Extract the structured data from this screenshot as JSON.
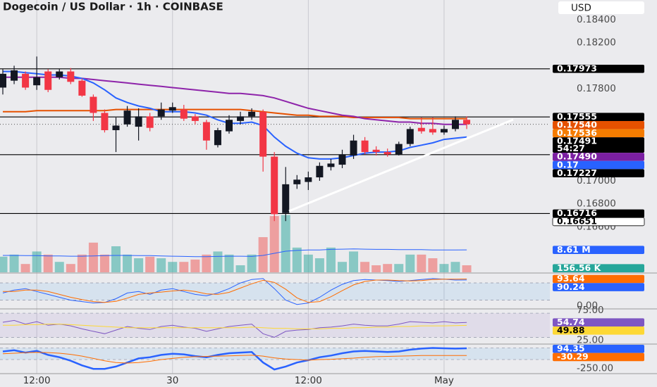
{
  "chart_data": {
    "type": "candlestick",
    "title": "Dogecoin / US Dollar · 1h · COINBASE",
    "currency": "USD",
    "categories": [
      null,
      null,
      null,
      "12:00",
      null,
      null,
      null,
      null,
      null,
      null,
      null,
      null,
      null,
      null,
      null,
      "30",
      null,
      null,
      null,
      null,
      null,
      null,
      null,
      null,
      null,
      null,
      null,
      "12:00",
      null,
      null,
      null,
      null,
      null,
      null,
      null,
      null,
      null,
      null,
      null,
      "May",
      null,
      null
    ],
    "open": [
      0.1781,
      0.1787,
      0.1793,
      0.1783,
      0.1795,
      0.179,
      0.1795,
      0.1787,
      0.1773,
      0.1759,
      0.1744,
      0.1749,
      0.1747,
      0.1756,
      0.1756,
      0.1761,
      0.1762,
      0.1756,
      0.1751,
      0.1731,
      0.1743,
      0.1752,
      0.1756,
      0.176,
      0.1721,
      0.1672,
      0.1697,
      0.1699,
      0.1703,
      0.1712,
      0.1714,
      0.1722,
      0.1735,
      0.1727,
      0.1725,
      0.1723,
      0.1732,
      0.1746,
      0.1745,
      0.1742,
      0.1745,
      0.1753
    ],
    "high": [
      0.1797,
      0.18,
      0.1795,
      0.1808,
      0.1797,
      0.1797,
      0.1798,
      0.1789,
      0.1775,
      0.1762,
      0.1755,
      0.1765,
      0.1763,
      0.1759,
      0.1768,
      0.1768,
      0.1766,
      0.1758,
      0.1753,
      0.1746,
      0.1757,
      0.176,
      0.1763,
      0.1762,
      0.1725,
      0.1712,
      0.1705,
      0.1708,
      0.1716,
      0.1719,
      0.1727,
      0.174,
      0.1738,
      0.173,
      0.1728,
      0.1734,
      0.1747,
      0.1755,
      0.1755,
      0.1748,
      0.1756,
      0.1756
    ],
    "low": [
      0.1775,
      0.1784,
      0.1779,
      0.1779,
      0.1777,
      0.1788,
      0.1784,
      0.1773,
      0.1752,
      0.1742,
      0.1725,
      0.1747,
      0.1735,
      0.1743,
      0.1753,
      0.1759,
      0.1752,
      0.1749,
      0.1727,
      0.1729,
      0.1741,
      0.1749,
      0.1753,
      0.1708,
      0.1665,
      0.1665,
      0.1693,
      0.1692,
      0.17,
      0.1709,
      0.1711,
      0.1719,
      0.1723,
      0.1722,
      0.1721,
      0.1722,
      0.173,
      0.1741,
      0.174,
      0.174,
      0.1743,
      0.1745
    ],
    "close": [
      0.1793,
      0.1796,
      0.1781,
      0.179,
      0.1779,
      0.1795,
      0.1786,
      0.1774,
      0.1759,
      0.1744,
      0.1748,
      0.1761,
      0.1756,
      0.1746,
      0.1762,
      0.1764,
      0.1754,
      0.1752,
      0.1735,
      0.1744,
      0.1753,
      0.1756,
      0.176,
      0.1721,
      0.1671,
      0.1697,
      0.1701,
      0.1703,
      0.1713,
      0.1715,
      0.1723,
      0.1735,
      0.1725,
      0.1725,
      0.1723,
      0.1732,
      0.1745,
      0.1743,
      0.1742,
      0.1745,
      0.1753,
      0.17491
    ],
    "up_color": "#131722",
    "down_color": "#f23645",
    "ylim": [
      0.16205,
      0.18571
    ],
    "yticks": [
      {
        "value": 0.166,
        "label": "0.16600"
      },
      {
        "value": 0.168,
        "label": "0.16800"
      },
      {
        "value": 0.17,
        "label": "0.17000"
      },
      {
        "value": 0.178,
        "label": "0.17800"
      },
      {
        "value": 0.182,
        "label": "0.18200"
      },
      {
        "value": 0.184,
        "label": "0.18400"
      }
    ],
    "xgrid": true,
    "moving_averages": [
      {
        "color": "#e65100",
        "values": [
          0.176,
          0.176,
          0.176,
          0.1761,
          0.1761,
          0.1761,
          0.1761,
          0.1761,
          0.1761,
          0.1761,
          0.1762,
          0.1762,
          0.1762,
          0.1762,
          0.1762,
          0.1762,
          0.1762,
          0.1762,
          0.1762,
          0.1762,
          0.1762,
          0.1762,
          0.1761,
          0.176,
          0.1759,
          0.1758,
          0.1757,
          0.1757,
          0.1756,
          0.1756,
          0.1756,
          0.1755,
          0.1755,
          0.1755,
          0.1755,
          0.1755,
          0.1754,
          0.1754,
          0.1754,
          0.1754,
          0.1754,
          0.1754
        ]
      },
      {
        "color": "#8e24aa",
        "values": [
          0.179,
          0.179,
          0.179,
          0.179,
          0.179,
          0.179,
          0.1789,
          0.1789,
          0.1788,
          0.1787,
          0.1786,
          0.1785,
          0.1784,
          0.1783,
          0.1782,
          0.1781,
          0.178,
          0.1779,
          0.1778,
          0.1777,
          0.1776,
          0.1776,
          0.1775,
          0.1774,
          0.1772,
          0.1769,
          0.1766,
          0.1763,
          0.1761,
          0.1759,
          0.1757,
          0.1756,
          0.1754,
          0.1753,
          0.1752,
          0.1751,
          0.1751,
          0.175,
          0.175,
          0.1749,
          0.1749,
          0.1749
        ]
      },
      {
        "color": "#2962ff",
        "values": [
          0.1795,
          0.1795,
          0.1794,
          0.1793,
          0.1792,
          0.1792,
          0.1791,
          0.1789,
          0.1785,
          0.1779,
          0.1772,
          0.1768,
          0.1765,
          0.1763,
          0.176,
          0.176,
          0.176,
          0.1759,
          0.1757,
          0.1753,
          0.175,
          0.175,
          0.1751,
          0.1748,
          0.1738,
          0.173,
          0.1724,
          0.172,
          0.1719,
          0.1719,
          0.172,
          0.1722,
          0.1724,
          0.1725,
          0.1725,
          0.1726,
          0.1729,
          0.1731,
          0.1733,
          0.1736,
          0.1737,
          0.1738
        ]
      }
    ],
    "levels": [
      0.17973,
      0.17555,
      0.17227,
      0.16716
    ],
    "price_tags": [
      {
        "value": 0.17973,
        "label": "0.17973",
        "color": "#000000",
        "text_color": "#ffffff"
      },
      {
        "value": 0.17555,
        "label": "0.17555",
        "color": "#000000",
        "text_color": "#ffffff"
      },
      {
        "value": 0.1754,
        "label": "0.17540",
        "color": "#e65100",
        "text_color": "#ffffff"
      },
      {
        "value": 0.17536,
        "label": "0.17536",
        "color": "#f57c00",
        "text_color": "#ffffff"
      },
      {
        "value": 0.17491,
        "label": "0.17491",
        "color": "#000000",
        "text_color": "#ffffff",
        "countdown": "54:27"
      },
      {
        "value": 0.1749,
        "label": "0.17490",
        "color": "#7b1fa2",
        "text_color": "#ffffff"
      },
      {
        "value": 0.1738,
        "label": "0.17",
        "color": "#2962ff",
        "text_color": "#ffffff"
      },
      {
        "value": 0.17227,
        "label": "0.17227",
        "color": "#000000",
        "text_color": "#ffffff"
      },
      {
        "value": 0.16716,
        "label": "0.16716",
        "color": "#000000",
        "text_color": "#ffffff"
      },
      {
        "value": 0.16651,
        "label": "0.16651",
        "color": "#ffffff",
        "text_color": "#000000"
      }
    ],
    "volume": {
      "values": [
        6,
        6.8,
        3.2,
        8,
        6.8,
        4,
        3.2,
        6.8,
        11.4,
        6.8,
        10,
        6.8,
        5.4,
        6,
        5.4,
        4,
        4,
        4.9,
        6.8,
        8,
        6.8,
        2.7,
        6.8,
        13.5,
        21.6,
        22,
        9.5,
        6.8,
        5.4,
        9.5,
        4,
        8,
        4,
        2.7,
        3.2,
        3.2,
        6.8,
        6.8,
        5.4,
        3.2,
        4,
        2.7
      ],
      "up_color": "#26a69a",
      "down_color": "#ef5350",
      "ylim": [
        0,
        104.6
      ],
      "ma": {
        "color": "#2962ff",
        "values": [
          6.5,
          6.5,
          6.4,
          6.4,
          6.3,
          6.3,
          6.2,
          6.2,
          6.3,
          6.4,
          6.5,
          6.5,
          6.4,
          6.4,
          6.3,
          6.2,
          6.1,
          6.0,
          6.0,
          6.1,
          6.2,
          6.2,
          6.1,
          6.5,
          7.3,
          8.1,
          8.4,
          8.6,
          8.6,
          8.8,
          8.9,
          9.0,
          8.9,
          8.8,
          8.8,
          8.7,
          8.7,
          8.7,
          8.6,
          8.6,
          8.6,
          8.61
        ]
      },
      "tags": [
        {
          "value": 8.61,
          "label": "8.61 M",
          "color": "#2962ff",
          "text_color": "#ffffff"
        },
        {
          "value": 0.15656,
          "label": "156.56 K",
          "color": "#26a69a",
          "text_color": "#ffffff"
        }
      ]
    },
    "panes": [
      {
        "ylim": [
          -8,
          112
        ],
        "yticks": [
          {
            "value": 0,
            "label": "0.00"
          }
        ],
        "band": [
          20,
          80
        ],
        "band_color": "#2196f3",
        "series": [
          {
            "color": "#2962ff",
            "width": 1,
            "values": [
              45,
              55,
              60,
              50,
              40,
              30,
              20,
              15,
              10,
              12,
              25,
              45,
              50,
              40,
              55,
              60,
              50,
              40,
              35,
              45,
              60,
              80,
              92,
              95,
              60,
              20,
              5,
              10,
              30,
              55,
              75,
              88,
              92,
              90,
              88,
              85,
              88,
              92,
              95,
              93,
              90,
              90.24
            ]
          },
          {
            "color": "#ff6d00",
            "width": 1,
            "values": [
              50,
              50,
              55,
              55,
              50,
              40,
              30,
              22,
              15,
              12,
              16,
              27,
              40,
              45,
              48,
              52,
              55,
              50,
              42,
              40,
              47,
              62,
              77,
              89,
              82,
              58,
              28,
              12,
              15,
              32,
              53,
              73,
              85,
              90,
              90,
              88,
              87,
              88,
              92,
              93,
              93,
              93.64
            ]
          }
        ],
        "tags": [
          {
            "value": 93.64,
            "label": "93.64",
            "color": "#ff6d00",
            "text_color": "#ffffff"
          },
          {
            "value": 90.24,
            "label": "90.24",
            "color": "#2962ff",
            "text_color": "#ffffff"
          }
        ]
      },
      {
        "ylim": [
          20,
          76
        ],
        "yticks": [
          {
            "value": 75,
            "label": "75.00"
          },
          {
            "value": 25,
            "label": "25.00"
          }
        ],
        "band": [
          30,
          70
        ],
        "band_color": "#7e57c2",
        "series": [
          {
            "color": "#7e57c2",
            "width": 1,
            "values": [
              55,
              58,
              52,
              56,
              50,
              52,
              49,
              44,
              40,
              36,
              42,
              48,
              45,
              43,
              48,
              50,
              47,
              45,
              40,
              44,
              48,
              50,
              52,
              36,
              30,
              40,
              42,
              43,
              46,
              47,
              49,
              52,
              50,
              49,
              49,
              52,
              56,
              55,
              54,
              56,
              54,
              54.74
            ]
          },
          {
            "color": "#fdd835",
            "width": 1,
            "values": [
              50,
              50,
              51,
              51,
              52,
              52,
              51,
              50,
              49,
              48,
              47,
              46,
              46,
              46,
              46,
              46,
              46,
              46,
              46,
              46,
              46,
              46,
              47,
              46,
              45,
              45,
              44,
              44,
              44,
              45,
              45,
              46,
              46,
              47,
              47,
              48,
              48,
              49,
              49,
              49,
              49.5,
              49.88
            ]
          }
        ],
        "tags": [
          {
            "value": 54.74,
            "label": "54.74",
            "color": "#7e57c2",
            "text_color": "#ffffff"
          },
          {
            "value": 49.88,
            "label": "49.88",
            "color": "#fdd835",
            "text_color": "#000000"
          }
        ]
      },
      {
        "ylim": [
          -330,
          155
        ],
        "yticks": [
          {
            "value": -250,
            "label": "-250.00"
          }
        ],
        "band": [
          -100,
          100
        ],
        "band_color": "#2196f3",
        "series": [
          {
            "color": "#2962ff",
            "width": 2.5,
            "values": [
              40,
              60,
              20,
              50,
              -20,
              -60,
              -120,
              -200,
              -260,
              -260,
              -220,
              -150,
              -80,
              -60,
              -20,
              0,
              -10,
              -40,
              -60,
              -20,
              10,
              20,
              30,
              -150,
              -270,
              -220,
              -150,
              -110,
              -60,
              -30,
              10,
              40,
              50,
              40,
              30,
              40,
              70,
              90,
              100,
              94,
              90,
              94.35
            ]
          },
          {
            "color": "#ff6d00",
            "width": 1,
            "values": [
              0,
              10,
              20,
              25,
              20,
              10,
              -10,
              -40,
              -80,
              -120,
              -150,
              -160,
              -150,
              -130,
              -100,
              -80,
              -60,
              -50,
              -45,
              -40,
              -35,
              -30,
              -25,
              -40,
              -70,
              -90,
              -100,
              -110,
              -100,
              -95,
              -85,
              -75,
              -60,
              -50,
              -45,
              -40,
              -35,
              -30,
              -30,
              -30,
              -30,
              -30.29
            ]
          }
        ],
        "tags": [
          {
            "value": 94.35,
            "label": "94.35",
            "color": "#2962ff",
            "text_color": "#ffffff"
          },
          {
            "value": -30.29,
            "label": "-30.29",
            "color": "#ff6d00",
            "text_color": "#ffffff"
          }
        ]
      }
    ]
  }
}
